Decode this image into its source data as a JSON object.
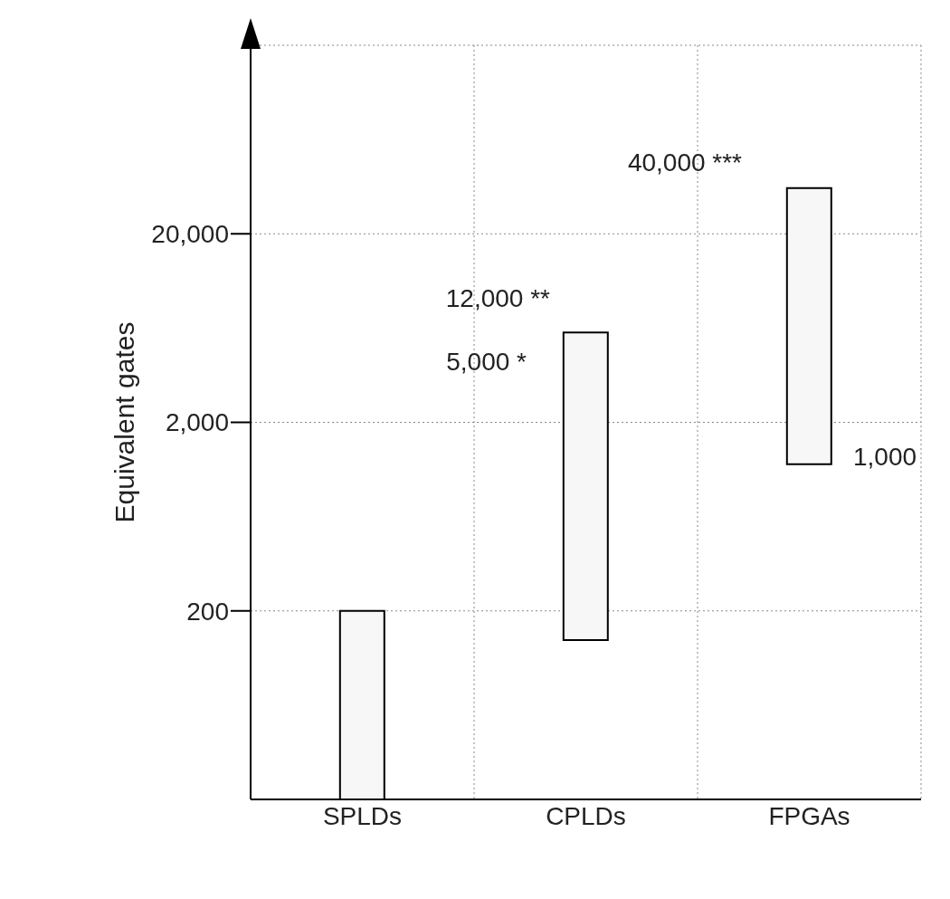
{
  "chart_data": {
    "type": "bar",
    "ylabel": "Equivalent gates",
    "categories": [
      "SPLDs",
      "CPLDs",
      "FPGAs"
    ],
    "series": [
      {
        "color": "#f7f7f7",
        "base": [
          20,
          140,
          1200
        ],
        "values": [
          180,
          5860,
          33800
        ]
      }
    ],
    "log": "y",
    "ylim": [
      20,
      200000
    ],
    "yticks": [
      {
        "value": 200,
        "label": "200"
      },
      {
        "value": 2000,
        "label": "2,000"
      },
      {
        "value": 20000,
        "label": "20,000"
      }
    ],
    "grid": true,
    "legend": false,
    "annotations": [
      "40,000 ***",
      "12,000 **",
      "5,000 *",
      "1,000"
    ]
  }
}
